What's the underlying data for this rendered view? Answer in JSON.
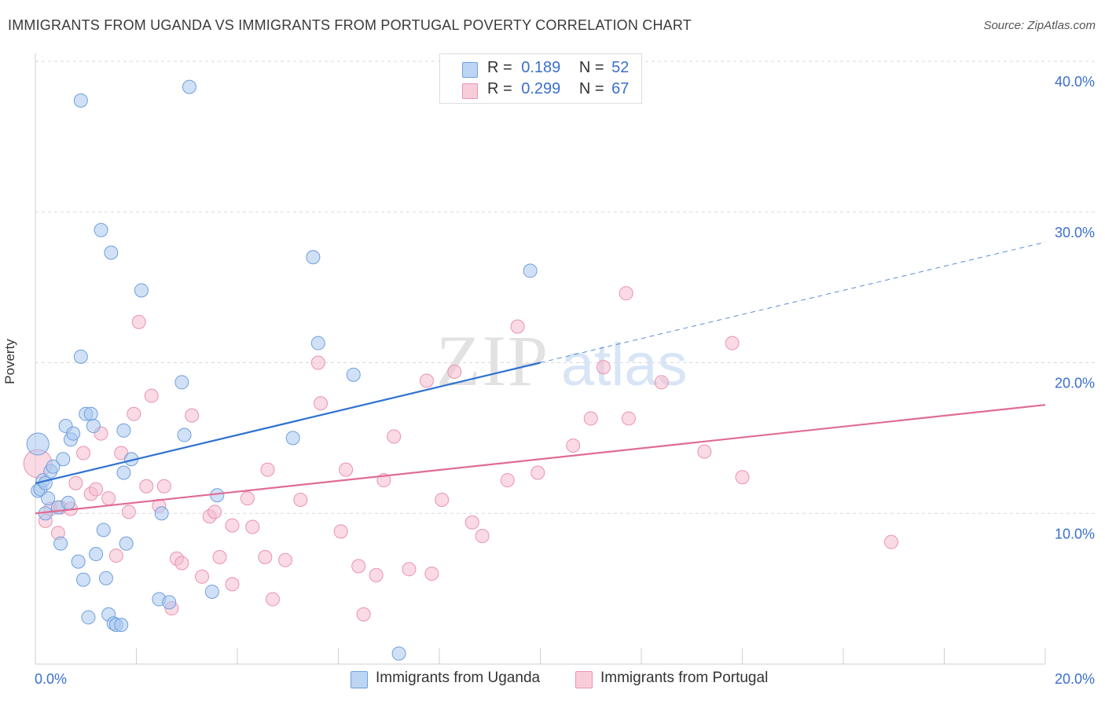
{
  "title": "IMMIGRANTS FROM UGANDA VS IMMIGRANTS FROM PORTUGAL POVERTY CORRELATION CHART",
  "source": "Source: ZipAtlas.com",
  "watermark": {
    "zip": "ZIP",
    "atlas": "atlas"
  },
  "legend_stats": {
    "r_label": "R =",
    "n_label": "N =",
    "uganda": {
      "r": "0.189",
      "n": "52"
    },
    "portugal": {
      "r": "0.299",
      "n": "67"
    }
  },
  "colors": {
    "uganda_fill": "#a9c8f0",
    "uganda_stroke": "#6f9fdc",
    "uganda_line": "#2f72d0",
    "portugal_fill": "#f6bccd",
    "portugal_stroke": "#ea93ad",
    "portugal_line": "#e06c93",
    "tick_label": "#3a6fcf",
    "grid": "#d9d9d9"
  },
  "chart_data": {
    "type": "scatter",
    "title": "IMMIGRANTS FROM UGANDA VS IMMIGRANTS FROM PORTUGAL POVERTY CORRELATION CHART",
    "xlabel": "",
    "ylabel": "Poverty",
    "xlim": [
      0,
      20
    ],
    "ylim": [
      0,
      40
    ],
    "x_tick_labels": [
      "0.0%",
      "20.0%"
    ],
    "y_ticks": [
      10,
      20,
      30,
      40
    ],
    "y_tick_labels": [
      "10.0%",
      "20.0%",
      "30.0%",
      "40.0%"
    ],
    "grid": true,
    "legend_position": "bottom",
    "series": [
      {
        "name": "Immigrants from Uganda",
        "color": "#a9c8f0",
        "trend": {
          "x": [
            0,
            10
          ],
          "y": [
            12.0,
            20.0
          ],
          "dashed_to": [
            20,
            28.0
          ]
        },
        "points": [
          [
            0.05,
            14.6
          ],
          [
            0.05,
            11.5
          ],
          [
            0.1,
            11.6
          ],
          [
            0.15,
            12.2
          ],
          [
            0.2,
            10.0
          ],
          [
            0.2,
            12.0
          ],
          [
            0.25,
            11.0
          ],
          [
            0.3,
            12.8
          ],
          [
            0.35,
            13.1
          ],
          [
            0.45,
            10.4
          ],
          [
            0.5,
            8.0
          ],
          [
            0.55,
            13.6
          ],
          [
            0.6,
            15.8
          ],
          [
            0.65,
            10.7
          ],
          [
            0.7,
            14.9
          ],
          [
            0.75,
            15.3
          ],
          [
            0.85,
            6.8
          ],
          [
            0.9,
            20.4
          ],
          [
            0.9,
            37.4
          ],
          [
            0.95,
            5.6
          ],
          [
            1.0,
            16.6
          ],
          [
            1.05,
            3.1
          ],
          [
            1.1,
            16.6
          ],
          [
            1.15,
            15.8
          ],
          [
            1.2,
            7.3
          ],
          [
            1.3,
            28.8
          ],
          [
            1.35,
            8.9
          ],
          [
            1.4,
            5.7
          ],
          [
            1.45,
            3.3
          ],
          [
            1.5,
            27.3
          ],
          [
            1.55,
            2.7
          ],
          [
            1.6,
            2.6
          ],
          [
            1.7,
            2.6
          ],
          [
            1.75,
            15.5
          ],
          [
            1.75,
            12.7
          ],
          [
            1.8,
            8.0
          ],
          [
            1.9,
            13.6
          ],
          [
            2.1,
            24.8
          ],
          [
            2.45,
            4.3
          ],
          [
            2.5,
            10.0
          ],
          [
            2.65,
            4.1
          ],
          [
            2.9,
            18.7
          ],
          [
            2.95,
            15.2
          ],
          [
            3.05,
            38.3
          ],
          [
            3.5,
            4.8
          ],
          [
            3.6,
            11.2
          ],
          [
            5.1,
            15.0
          ],
          [
            5.5,
            27.0
          ],
          [
            5.6,
            21.3
          ],
          [
            6.3,
            19.2
          ],
          [
            7.2,
            0.7
          ],
          [
            9.8,
            26.1
          ]
        ]
      },
      {
        "name": "Immigrants from Portugal",
        "color": "#f6bccd",
        "trend": {
          "x": [
            0,
            20
          ],
          "y": [
            10.0,
            17.2
          ]
        },
        "points": [
          [
            0.05,
            13.3
          ],
          [
            0.2,
            9.5
          ],
          [
            0.3,
            10.3
          ],
          [
            0.45,
            8.7
          ],
          [
            0.5,
            10.4
          ],
          [
            0.7,
            10.3
          ],
          [
            0.8,
            12.0
          ],
          [
            0.95,
            14.0
          ],
          [
            1.1,
            11.3
          ],
          [
            1.2,
            11.6
          ],
          [
            1.3,
            15.3
          ],
          [
            1.45,
            11.0
          ],
          [
            1.6,
            7.2
          ],
          [
            1.7,
            14.0
          ],
          [
            1.85,
            10.1
          ],
          [
            1.95,
            16.6
          ],
          [
            2.05,
            22.7
          ],
          [
            2.2,
            11.8
          ],
          [
            2.3,
            17.8
          ],
          [
            2.45,
            10.5
          ],
          [
            2.55,
            11.8
          ],
          [
            2.7,
            3.7
          ],
          [
            2.8,
            7.0
          ],
          [
            2.9,
            6.7
          ],
          [
            3.1,
            16.5
          ],
          [
            3.3,
            5.8
          ],
          [
            3.45,
            9.8
          ],
          [
            3.55,
            10.1
          ],
          [
            3.65,
            7.1
          ],
          [
            3.9,
            5.3
          ],
          [
            3.9,
            9.2
          ],
          [
            4.2,
            11.0
          ],
          [
            4.3,
            9.1
          ],
          [
            4.55,
            7.1
          ],
          [
            4.6,
            12.9
          ],
          [
            4.7,
            4.3
          ],
          [
            4.95,
            6.9
          ],
          [
            5.25,
            10.9
          ],
          [
            5.6,
            20.0
          ],
          [
            5.65,
            17.3
          ],
          [
            6.05,
            8.8
          ],
          [
            6.15,
            12.9
          ],
          [
            6.4,
            6.5
          ],
          [
            6.5,
            3.3
          ],
          [
            6.75,
            5.9
          ],
          [
            6.9,
            12.2
          ],
          [
            7.1,
            15.1
          ],
          [
            7.4,
            6.3
          ],
          [
            7.75,
            18.8
          ],
          [
            7.85,
            6.0
          ],
          [
            8.05,
            10.9
          ],
          [
            8.3,
            19.4
          ],
          [
            8.65,
            9.4
          ],
          [
            8.85,
            8.5
          ],
          [
            9.35,
            12.2
          ],
          [
            9.55,
            22.4
          ],
          [
            9.95,
            12.7
          ],
          [
            10.65,
            14.5
          ],
          [
            11.0,
            16.3
          ],
          [
            11.25,
            19.7
          ],
          [
            11.7,
            24.6
          ],
          [
            11.75,
            16.3
          ],
          [
            12.4,
            18.7
          ],
          [
            13.25,
            14.1
          ],
          [
            13.8,
            21.3
          ],
          [
            14.0,
            12.4
          ],
          [
            16.95,
            8.1
          ]
        ]
      }
    ]
  }
}
